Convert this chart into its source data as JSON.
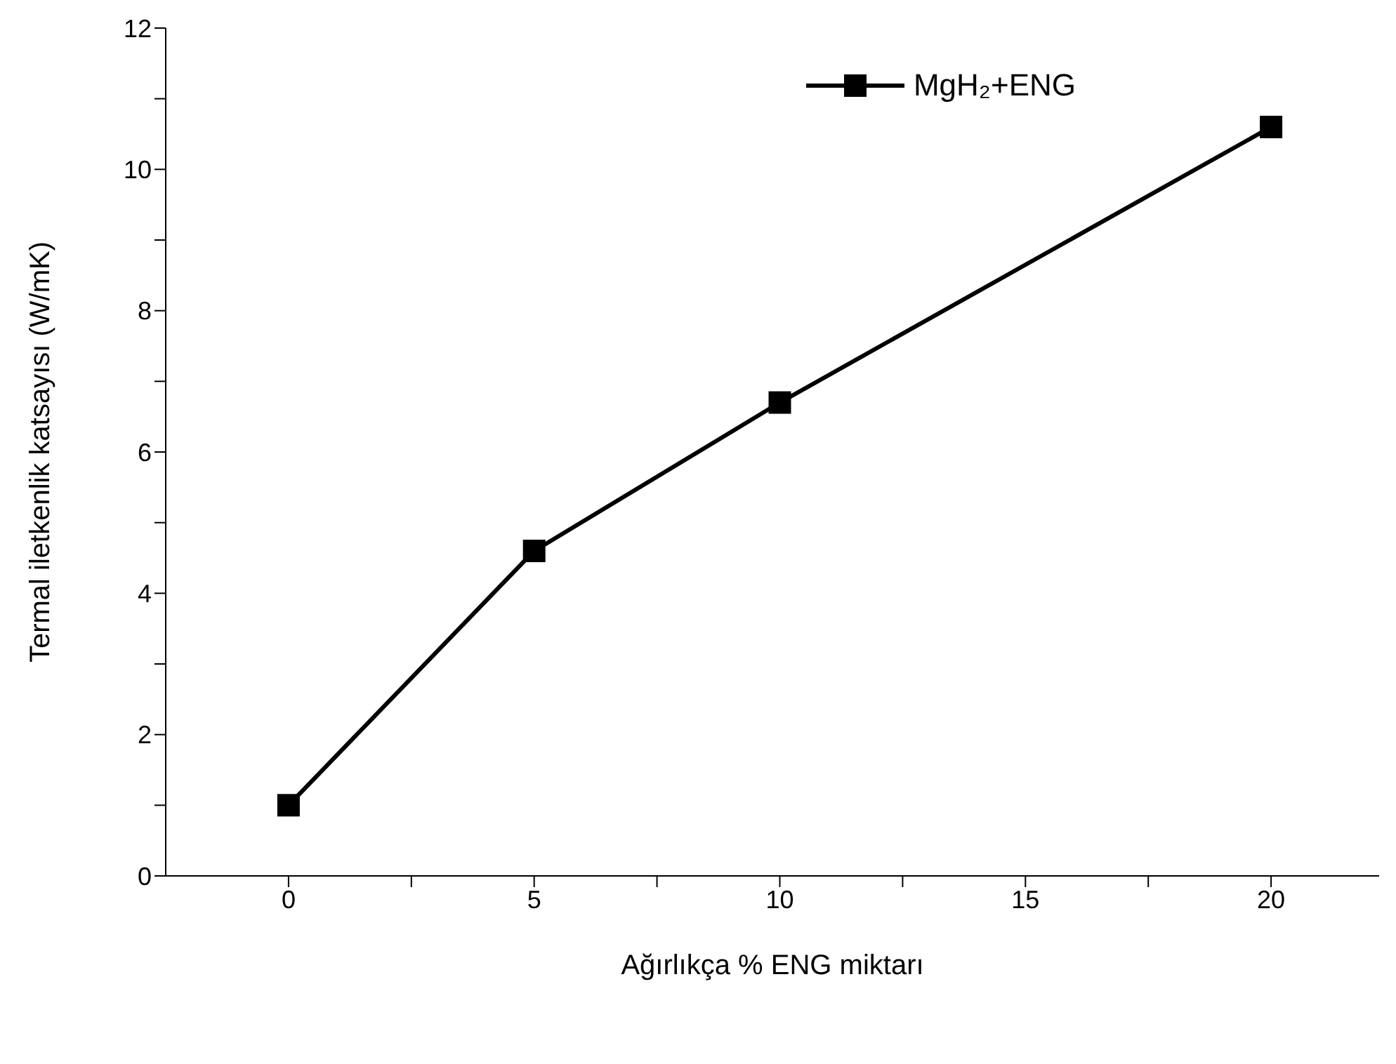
{
  "chart_data": {
    "type": "line",
    "xlabel": "Ağırlıkça % ENG miktarı",
    "ylabel": "Termal iletkenlik katsayısı (W/mK)",
    "x": [
      0,
      5,
      10,
      20
    ],
    "series": [
      {
        "name": "MgH₂+ENG",
        "color": "#000000",
        "values": [
          1.0,
          4.6,
          6.7,
          10.6
        ]
      }
    ],
    "xlim": [
      -2.5,
      22.2
    ],
    "xticks": [
      0,
      {
        "value": 2.5,
        "label": null
      },
      5,
      {
        "value": 7.5,
        "label": null
      },
      10,
      {
        "value": 12.5,
        "label": null
      },
      15,
      {
        "value": 17.5,
        "label": null
      },
      20
    ],
    "ylim": [
      0,
      12
    ],
    "yticks": [
      0,
      {
        "value": 1,
        "label": null
      },
      2,
      {
        "value": 3,
        "label": null
      },
      4,
      {
        "value": 5,
        "label": null
      },
      6,
      {
        "value": 7,
        "label": null
      },
      8,
      {
        "value": 9,
        "label": null
      },
      10,
      {
        "value": 11,
        "label": null
      },
      12
    ],
    "marker": "square",
    "line_style": "solid",
    "legend": "top right",
    "grid": false
  }
}
